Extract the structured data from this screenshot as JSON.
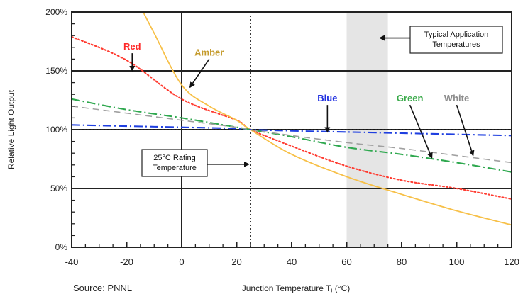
{
  "chart_data": {
    "type": "line",
    "title": "",
    "xlabel": "Junction Temperature Tⱼ (°C)",
    "ylabel": "Relative Light Output",
    "xlim": [
      -40,
      120
    ],
    "ylim": [
      0,
      200
    ],
    "xticks": [
      "-40",
      "-20",
      "0",
      "20",
      "40",
      "60",
      "80",
      "100",
      "120"
    ],
    "yticks": [
      "0%",
      "50%",
      "100%",
      "150%",
      "200%"
    ],
    "grid": true,
    "series": [
      {
        "name": "Red",
        "color": "#ff3b30",
        "dash": "dotted",
        "x": [
          -40,
          -20,
          0,
          20,
          25,
          40,
          60,
          80,
          100,
          120
        ],
        "y": [
          179,
          159,
          126,
          108,
          100,
          86,
          69,
          57,
          50,
          41
        ]
      },
      {
        "name": "Amber",
        "color": "#f7c048",
        "dash": "solid",
        "x": [
          -14,
          -10,
          0,
          10,
          20,
          25,
          40,
          60,
          80,
          100,
          120
        ],
        "y": [
          200,
          182,
          138,
          120,
          108,
          100,
          79,
          60,
          45,
          31,
          19
        ]
      },
      {
        "name": "Blue",
        "color": "#1f3fe0",
        "dash": "dashdot",
        "x": [
          -40,
          -20,
          0,
          20,
          25,
          40,
          60,
          80,
          100,
          120
        ],
        "y": [
          104,
          103,
          102,
          101,
          100,
          99,
          98,
          97,
          96,
          95
        ]
      },
      {
        "name": "Green",
        "color": "#2fa84f",
        "dash": "dashdot",
        "x": [
          -40,
          -20,
          0,
          20,
          25,
          40,
          60,
          80,
          100,
          120
        ],
        "y": [
          126,
          117,
          110,
          102,
          100,
          94,
          85,
          79,
          72,
          64
        ]
      },
      {
        "name": "White",
        "color": "#a0a0a0",
        "dash": "dashed",
        "x": [
          -40,
          -20,
          0,
          20,
          25,
          40,
          60,
          80,
          100,
          120
        ],
        "y": [
          120,
          114,
          108,
          102,
          100,
          95,
          89,
          84,
          78,
          72
        ]
      }
    ],
    "reference_lines": {
      "vertical_x": 25,
      "horizontal_y": 100
    },
    "shaded_band": {
      "x_from": 60,
      "x_to": 75,
      "label": "Typical Application Temperatures"
    },
    "annotations": [
      {
        "text": "25°C Rating Temperature",
        "target_x": 25,
        "target_y": 70
      },
      {
        "text": "Typical Application Temperatures",
        "target_x": 72,
        "target_y": 178
      }
    ],
    "series_labels": [
      {
        "name": "Red",
        "color": "#ff2a2a",
        "label_x": -18,
        "label_y": 168,
        "arrow_to_x": -18,
        "arrow_to_y": 150
      },
      {
        "name": "Amber",
        "color": "#c49a2a",
        "label_x": 10,
        "label_y": 163,
        "arrow_to_x": 3,
        "arrow_to_y": 136
      },
      {
        "name": "Blue",
        "color": "#1f2fe0",
        "label_x": 53,
        "label_y": 124,
        "arrow_to_x": 53,
        "arrow_to_y": 98
      },
      {
        "name": "Green",
        "color": "#3aaa4a",
        "label_x": 83,
        "label_y": 124,
        "arrow_to_x": 91,
        "arrow_to_y": 76
      },
      {
        "name": "White",
        "color": "#8c8c8c",
        "label_x": 100,
        "label_y": 124,
        "arrow_to_x": 106,
        "arrow_to_y": 78
      }
    ],
    "source": "Source: PNNL"
  }
}
